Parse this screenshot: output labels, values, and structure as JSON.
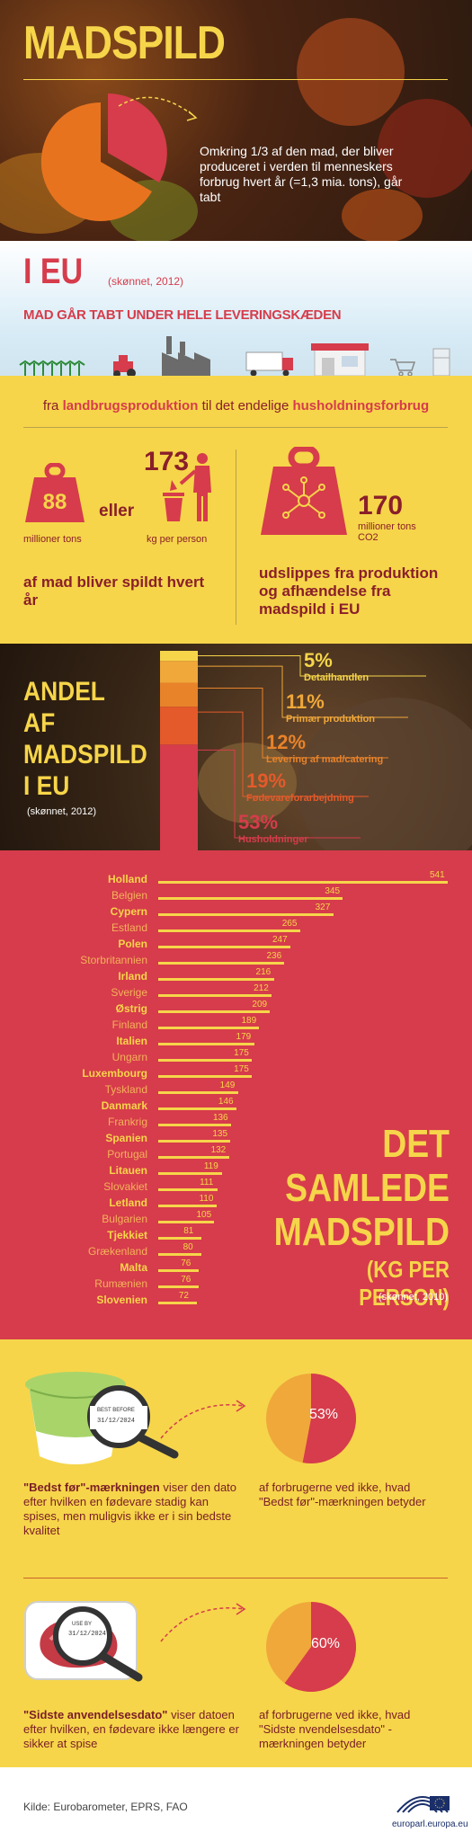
{
  "hero": {
    "title": "MADSPILD",
    "text": "Omkring 1/3 af den mad, der bliver produceret i verden til menneskers forbrug hvert år (=1,3 mia. tons), går tabt"
  },
  "eu": {
    "title": "I EU",
    "estimate": "(skønnet, 2012)",
    "chain_heading": "MAD GÅR TABT UNDER HELE LEVERINGSKÆDEN",
    "from_prefix": "fra",
    "from_bold": "landbrugsproduktion",
    "to_mid": "til det endelige",
    "to_bold": "husholdningsforbrug"
  },
  "stats": {
    "tons_value": "88",
    "tons_label": "millioner tons",
    "or_label": "eller",
    "per_person_value": "173",
    "per_person_label": "kg per person",
    "wasted_text": "af mad bliver spildt hvert år",
    "co2_value": "170",
    "co2_label": "millioner tons CO2",
    "emission_text": "udslippes fra produktion og afhændelse fra madspild i EU"
  },
  "share": {
    "title_lines": [
      "ANDEL",
      "AF",
      "MADSPILD",
      "I EU"
    ],
    "estimate": "(skønnet, 2012)",
    "items": [
      {
        "pct": "5%",
        "label": "Detailhandlen",
        "color": "#f6d54a"
      },
      {
        "pct": "11%",
        "label": "Primær produktion",
        "color": "#f0a83a"
      },
      {
        "pct": "12%",
        "label": "Levering af mad/catering",
        "color": "#e8832a"
      },
      {
        "pct": "19%",
        "label": "Fødevareforarbejdning",
        "color": "#e55a2a"
      },
      {
        "pct": "53%",
        "label": "Husholdninger",
        "color": "#d63c4b"
      }
    ]
  },
  "chart_data": {
    "type": "bar",
    "title": "DET SAMLEDE MADSPILD",
    "unit": "(KG PER PERSON)",
    "estimate": "(skønnet, 2010)",
    "categories": [
      "Holland",
      "Belgien",
      "Cypern",
      "Estland",
      "Polen",
      "Storbritannien",
      "Irland",
      "Sverige",
      "Østrig",
      "Finland",
      "Italien",
      "Ungarn",
      "Luxembourg",
      "Tyskland",
      "Danmark",
      "Frankrig",
      "Spanien",
      "Portugal",
      "Litauen",
      "Slovakiet",
      "Letland",
      "Bulgarien",
      "Tjekkiet",
      "Grækenland",
      "Malta",
      "Rumænien",
      "Slovenien"
    ],
    "values": [
      541,
      345,
      327,
      265,
      247,
      236,
      216,
      212,
      209,
      189,
      179,
      175,
      175,
      149,
      146,
      136,
      135,
      132,
      119,
      111,
      110,
      105,
      81,
      80,
      76,
      76,
      72
    ],
    "bold": [
      true,
      false,
      true,
      false,
      true,
      false,
      true,
      false,
      true,
      false,
      true,
      false,
      true,
      false,
      true,
      false,
      true,
      false,
      true,
      false,
      true,
      false,
      true,
      false,
      true,
      false,
      true
    ]
  },
  "best_before": {
    "stamp_title": "BEST BEFORE",
    "stamp_date": "31/12/2024",
    "term": "\"Bedst før\"-mærkningen",
    "desc": "viser den dato efter hvilken en fødevare stadig kan spises, men muligvis ikke er i sin bedste kvalitet",
    "pct": "53%",
    "pct_value": 53,
    "pct_text": "af forbrugerne ved ikke, hvad \"Bedst før\"-mærkningen betyder"
  },
  "use_by": {
    "stamp_title": "USE BY",
    "stamp_date": "31/12/2024",
    "term": "\"Sidste anvendelsesdato\"",
    "desc": "viser datoen efter hvilken, en fødevare ikke længere er sikker at spise",
    "pct": "60%",
    "pct_value": 60,
    "pct_text": "af forbrugerne ved ikke, hvad \"Sidste nvendelsesdato\" -mærkningen betyder"
  },
  "footer": {
    "source": "Kilde: Eurobarometer, EPRS, FAO",
    "site": "europarl.europa.eu"
  },
  "colors": {
    "yellow": "#f6d54a",
    "red": "#d63c4b",
    "dark_red": "#8a1f2a",
    "orange": "#e8832a"
  }
}
